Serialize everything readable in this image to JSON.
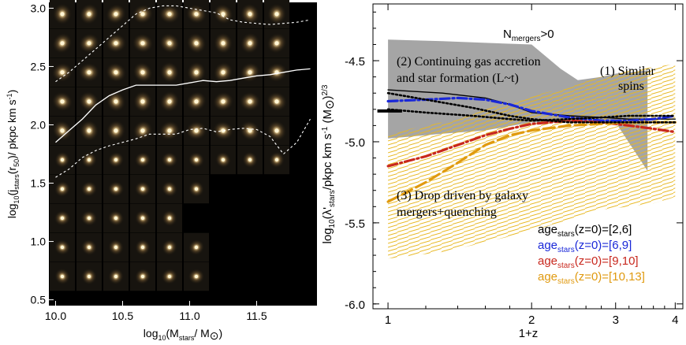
{
  "chart_data": [
    {
      "type": "image-grid",
      "xlabel": "log10(Mstars/ M⊙)",
      "ylabel": "log10(jstars(r50)/ pkpc km s-1)",
      "xlabel_parts": {
        "pre": "log",
        "sub1": "10",
        "mid": "(M",
        "sub2": "stars",
        "post": "/ M",
        "sun": "⊙",
        ")": ")"
      },
      "ylabel_parts": {
        "pre": "log",
        "sub1": "10",
        "mid": "(j",
        "sub2": "stars",
        "post": "(r",
        "sub3": "50",
        "tail": ")/ pkpc km s",
        "sup": "-1",
        ")": ")"
      },
      "xlim": [
        9.95,
        11.95
      ],
      "ylim": [
        0.45,
        3.05
      ],
      "x_ticks": [
        {
          "v": 10.0,
          "label": "10.0"
        },
        {
          "v": 10.5,
          "label": "10.5"
        },
        {
          "v": 11.0,
          "label": "11.0"
        },
        {
          "v": 11.5,
          "label": "11.5"
        }
      ],
      "y_ticks": [
        {
          "v": 0.5,
          "label": "0.5"
        },
        {
          "v": 1.0,
          "label": "1.0"
        },
        {
          "v": 1.5,
          "label": "1.5"
        },
        {
          "v": 2.0,
          "label": "2.0"
        },
        {
          "v": 2.5,
          "label": "2.5"
        },
        {
          "v": 3.0,
          "label": "3.0"
        }
      ],
      "grid": {
        "x_centers": [
          10.05,
          10.25,
          10.45,
          10.65,
          10.85,
          11.05,
          11.25,
          11.45,
          11.65,
          11.85
        ],
        "y_centers": [
          2.95,
          2.7,
          2.45,
          2.2,
          1.95,
          1.7,
          1.45,
          1.2,
          0.95,
          0.7
        ],
        "filled_cols_per_row": [
          9,
          9,
          9,
          9,
          9,
          9,
          6,
          5,
          6,
          6
        ]
      },
      "median": {
        "x": [
          10.0,
          10.1,
          10.2,
          10.3,
          10.4,
          10.5,
          10.6,
          10.7,
          10.8,
          10.9,
          11.0,
          11.1,
          11.2,
          11.3,
          11.4,
          11.5,
          11.6,
          11.7,
          11.8,
          11.9
        ],
        "y": [
          1.85,
          1.95,
          2.05,
          2.17,
          2.25,
          2.3,
          2.34,
          2.34,
          2.34,
          2.34,
          2.36,
          2.38,
          2.37,
          2.38,
          2.4,
          2.42,
          2.43,
          2.45,
          2.47,
          2.48
        ]
      },
      "upper": {
        "x": [
          10.0,
          10.1,
          10.2,
          10.3,
          10.4,
          10.5,
          10.6,
          10.7,
          10.8,
          10.9,
          11.0,
          11.1,
          11.2,
          11.3,
          11.4,
          11.5,
          11.6,
          11.7,
          11.8,
          11.9
        ],
        "y": [
          2.37,
          2.45,
          2.55,
          2.65,
          2.75,
          2.85,
          2.95,
          3.0,
          3.02,
          3.02,
          3.0,
          2.98,
          2.96,
          2.9,
          2.88,
          2.87,
          2.86,
          2.87,
          2.88,
          2.9
        ]
      },
      "lower": {
        "x": [
          10.0,
          10.1,
          10.2,
          10.3,
          10.4,
          10.5,
          10.6,
          10.7,
          10.8,
          10.9,
          11.0,
          11.1,
          11.2,
          11.3,
          11.4,
          11.5,
          11.6,
          11.7,
          11.8,
          11.9
        ],
        "y": [
          1.55,
          1.62,
          1.72,
          1.78,
          1.82,
          1.85,
          1.88,
          1.92,
          1.92,
          1.92,
          1.96,
          1.97,
          1.94,
          1.96,
          1.97,
          1.96,
          1.9,
          1.75,
          1.85,
          2.05
        ]
      }
    },
    {
      "type": "line",
      "xscale": "log",
      "xlabel": "1+z",
      "ylabel_parts": {
        "pre": "log",
        "sub1": "10",
        "mid": "(λ'",
        "sub2": "stars",
        "tail": "/pkpc km s",
        "sup1": "-1",
        "mid2": " (M",
        "sun": "⊙",
        ")": ")",
        "sup2": "2/3",
        ")2": ")"
      },
      "xlim": [
        0.93,
        4.15
      ],
      "ylim": [
        -6.03,
        -4.15
      ],
      "x_ticks": [
        {
          "v": 1,
          "label": "1"
        },
        {
          "v": 2,
          "label": "2"
        },
        {
          "v": 3,
          "label": "3"
        },
        {
          "v": 4,
          "label": "4"
        }
      ],
      "y_ticks": [
        {
          "v": -4.5,
          "label": "-4.5"
        },
        {
          "v": -5.0,
          "label": "-5.0"
        },
        {
          "v": -5.5,
          "label": "-5.5"
        },
        {
          "v": -6.0,
          "label": "-6.0"
        }
      ],
      "title_parts": {
        "pre": "N",
        "sub": "mergers",
        "post": ">0"
      },
      "annotations": [
        {
          "text_lines": [
            "(2) Continuing gas accretion",
            "and star formation (L~t)"
          ],
          "x": 1.0,
          "y": -4.45
        },
        {
          "text_lines": [
            "(1) Similar",
            "spins"
          ],
          "x": 3.3,
          "y": -4.52
        },
        {
          "text_lines": [
            "(3) Drop driven by galaxy",
            "mergers+quenching"
          ],
          "x": 1.0,
          "y": -5.38
        }
      ],
      "gray_band": {
        "x": [
          1.0,
          1.3,
          1.6,
          2.0,
          2.3,
          2.5,
          2.8,
          3.0,
          3.5
        ],
        "upper": [
          -4.37,
          -4.38,
          -4.39,
          -4.4,
          -4.55,
          -4.62,
          -4.6,
          -4.58,
          -4.56
        ],
        "lower": [
          -4.98,
          -4.95,
          -4.93,
          -4.88,
          -4.88,
          -4.88,
          -4.88,
          -4.88,
          -5.18
        ]
      },
      "gold_band": {
        "x": [
          1.0,
          1.3,
          1.6,
          2.0,
          2.4,
          2.8,
          3.2,
          3.6,
          4.0
        ],
        "upper": [
          -4.95,
          -4.88,
          -4.8,
          -4.72,
          -4.66,
          -4.6,
          -4.56,
          -4.54,
          -4.52
        ],
        "lower": [
          -5.72,
          -5.68,
          -5.62,
          -5.55,
          -5.48,
          -5.42,
          -5.4,
          -5.38,
          -5.34
        ]
      },
      "marker_segment": {
        "x": [
          0.95,
          1.07
        ],
        "y": -4.81
      },
      "series": [
        {
          "name_parts": {
            "pre": "age",
            "sub": "stars",
            "post": "(z=0)=[2,6]"
          },
          "color": "#000000",
          "style": "solid",
          "x": [
            1.0,
            1.3,
            1.6,
            1.8,
            2.0,
            2.4,
            2.8,
            3.2,
            3.6,
            4.0
          ],
          "y": [
            -4.68,
            -4.7,
            -4.73,
            -4.77,
            -4.82,
            -4.84,
            -4.85,
            -4.86,
            -4.86,
            -4.86
          ]
        },
        {
          "name_parts": {
            "pre": "age",
            "sub": "stars",
            "post": "(z=0)=[6,9]"
          },
          "color": "#1a28d8",
          "style": "dashdot",
          "x": [
            1.0,
            1.2,
            1.4,
            1.6,
            1.8,
            2.0,
            2.4,
            2.8,
            3.2,
            3.6,
            4.0
          ],
          "y": [
            -4.75,
            -4.74,
            -4.73,
            -4.74,
            -4.77,
            -4.81,
            -4.85,
            -4.87,
            -4.87,
            -4.86,
            -4.84
          ]
        },
        {
          "name_parts": {
            "pre": "age",
            "sub": "stars",
            "post": "(z=0)=[9,10]"
          },
          "color": "#c8281e",
          "style": "dashdot",
          "x": [
            1.0,
            1.2,
            1.4,
            1.6,
            1.8,
            2.0,
            2.4,
            2.8,
            3.2,
            3.6,
            4.0
          ],
          "y": [
            -5.15,
            -5.09,
            -5.02,
            -4.96,
            -4.92,
            -4.89,
            -4.87,
            -4.88,
            -4.9,
            -4.92,
            -4.94
          ]
        },
        {
          "name_parts": {
            "pre": "age",
            "sub": "stars",
            "post": "(z=0)=[10,13]"
          },
          "color": "#e09a10",
          "style": "dashed",
          "x": [
            1.0,
            1.2,
            1.4,
            1.6,
            1.8,
            2.0,
            2.4,
            2.8,
            3.2,
            3.6,
            4.0
          ],
          "y": [
            -5.37,
            -5.25,
            -5.13,
            -5.02,
            -4.96,
            -4.93,
            -4.9,
            -4.89,
            -4.88,
            -4.88,
            -4.88
          ]
        },
        {
          "name": "",
          "color": "#000000",
          "style": "dotted",
          "x": [
            1.0,
            1.2,
            1.5,
            1.8,
            2.0,
            2.4,
            2.8,
            3.2,
            3.6,
            4.0
          ],
          "y": [
            -4.8,
            -4.82,
            -4.84,
            -4.86,
            -4.87,
            -4.86,
            -4.85,
            -4.84,
            -4.84,
            -4.84
          ]
        },
        {
          "name": "",
          "color": "#000000",
          "style": "dotted",
          "x": [
            1.0,
            1.2,
            1.5,
            1.8,
            2.0,
            2.4,
            2.8,
            3.2,
            3.6,
            4.0
          ],
          "y": [
            -4.7,
            -4.74,
            -4.79,
            -4.84,
            -4.86,
            -4.88,
            -4.88,
            -4.88,
            -4.88,
            -4.88
          ]
        }
      ]
    }
  ]
}
